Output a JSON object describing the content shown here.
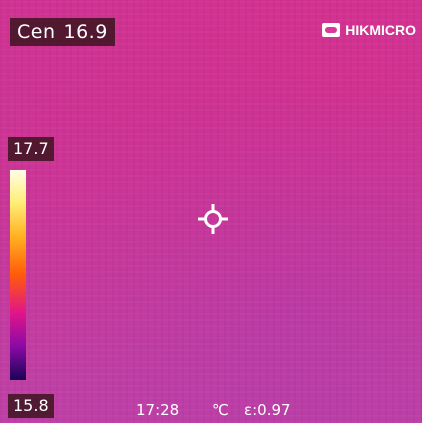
{
  "overlay": {
    "center_label": "Cen",
    "center_value": "16.9",
    "brand": "HIKMICRO",
    "brand_icon": "hikmicro-logo-icon"
  },
  "scale": {
    "max": "17.7",
    "min": "15.8",
    "palette": "iron-red"
  },
  "status": {
    "time": "17:28",
    "unit": "℃",
    "emissivity": "ε:0.97"
  },
  "colors": {
    "scene": "#c63aa3",
    "label_bg": "#3c141e"
  }
}
